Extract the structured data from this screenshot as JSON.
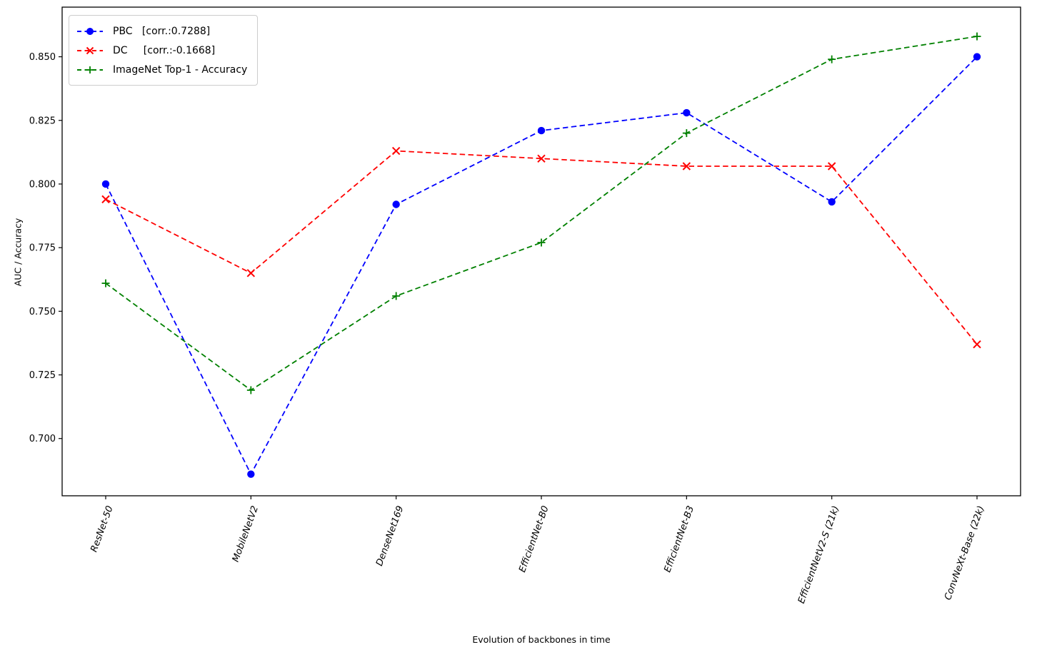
{
  "figure": {
    "background_color": "#ffffff",
    "frame_color": "#000000"
  },
  "legend": {
    "items": [
      {
        "label": "PBC   [corr.:0.7288]",
        "series": "PBC",
        "corr": 0.7288,
        "color": "#0000ff",
        "marker": "circle"
      },
      {
        "label": "DC     [corr.:-0.1668]",
        "series": "DC",
        "corr": -0.1668,
        "color": "#ff0000",
        "marker": "x"
      },
      {
        "label": "ImageNet Top-1 - Accuracy",
        "series": "ImageNet Top-1 - Accuracy",
        "color": "#008000",
        "marker": "plus"
      }
    ]
  },
  "chart_data": {
    "type": "line",
    "categories": [
      "ResNet-50",
      "MobileNetV2",
      "DenseNet169",
      "EfficientNet-B0",
      "EfficientNet-B3",
      "EfficientNetV2-S (21k)",
      "ConvNeXt-Base (22k)"
    ],
    "series": [
      {
        "name": "PBC",
        "legend_label": "PBC   [corr.:0.7288]",
        "color": "#0000ff",
        "marker": "circle",
        "linestyle": "dashed",
        "values": [
          0.8,
          0.686,
          0.792,
          0.821,
          0.828,
          0.793,
          0.85
        ]
      },
      {
        "name": "DC",
        "legend_label": "DC     [corr.:-0.1668]",
        "color": "#ff0000",
        "marker": "x",
        "linestyle": "dashed",
        "values": [
          0.794,
          0.765,
          0.813,
          0.81,
          0.807,
          0.807,
          0.737
        ]
      },
      {
        "name": "ImageNet Top-1 - Accuracy",
        "legend_label": "ImageNet Top-1 - Accuracy",
        "color": "#008000",
        "marker": "plus",
        "linestyle": "dashed",
        "values": [
          0.761,
          0.719,
          0.756,
          0.777,
          0.82,
          0.849,
          0.858
        ]
      }
    ],
    "title": "",
    "xlabel": "Evolution of backbones in time",
    "ylabel": "AUC / Accuracy",
    "ylim": [
      0.6775,
      0.8695
    ],
    "yticks": [
      0.7,
      0.725,
      0.75,
      0.775,
      0.8,
      0.825,
      0.85
    ],
    "ytick_decimals": 3,
    "grid": false,
    "legend_position": "upper left",
    "x_tick_rotation_deg": 70,
    "x_tick_style": "italic"
  }
}
